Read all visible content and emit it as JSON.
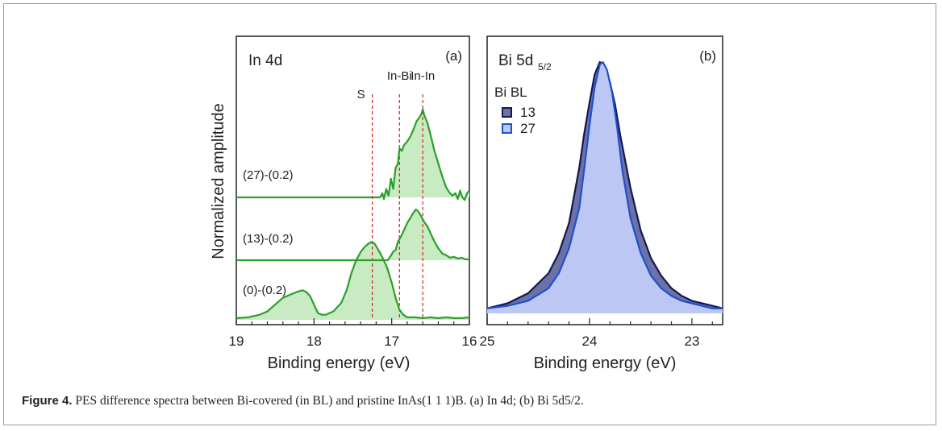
{
  "figure": {
    "ylabel": "Normalized amplitude",
    "caption": {
      "label": "Figure 4.",
      "text": "PES difference spectra between Bi-covered (in BL) and pristine InAs(1 1 1)B. (a)  In  4d; (b)  Bi  5d5/2."
    }
  },
  "chart_data": [
    {
      "type": "line",
      "panel_tag": "(a)",
      "title": "In 4d",
      "xlabel": "Binding energy (eV)",
      "xlim": [
        19,
        16
      ],
      "x_ticks": [
        "19",
        "18",
        "17",
        "16"
      ],
      "grid": false,
      "color": "#2aa02a",
      "fill": "#c8ebc3",
      "markers": [
        {
          "label": "S",
          "x": 17.25
        },
        {
          "label": "In-Bi",
          "x": 16.9
        },
        {
          "label": "In-In",
          "x": 16.6
        }
      ],
      "series": [
        {
          "name": "(27)-(0.2)",
          "offset": 2.0,
          "points": [
            [
              19.0,
              0
            ],
            [
              17.15,
              0
            ],
            [
              17.12,
              0.05
            ],
            [
              17.1,
              -0.02
            ],
            [
              17.07,
              0.1
            ],
            [
              17.04,
              0.02
            ],
            [
              17.01,
              0.22
            ],
            [
              16.98,
              0.1
            ],
            [
              16.95,
              0.35
            ],
            [
              16.92,
              0.4
            ],
            [
              16.9,
              0.58
            ],
            [
              16.87,
              0.55
            ],
            [
              16.84,
              0.62
            ],
            [
              16.8,
              0.66
            ],
            [
              16.76,
              0.72
            ],
            [
              16.72,
              0.8
            ],
            [
              16.68,
              0.9
            ],
            [
              16.64,
              0.95
            ],
            [
              16.62,
              0.98
            ],
            [
              16.6,
              1.04
            ],
            [
              16.58,
              0.97
            ],
            [
              16.54,
              0.88
            ],
            [
              16.5,
              0.74
            ],
            [
              16.45,
              0.55
            ],
            [
              16.4,
              0.4
            ],
            [
              16.35,
              0.25
            ],
            [
              16.3,
              0.12
            ],
            [
              16.26,
              0.06
            ],
            [
              16.22,
              0.02
            ],
            [
              16.18,
              0.05
            ],
            [
              16.15,
              -0.02
            ],
            [
              16.12,
              0.08
            ],
            [
              16.09,
              0.0
            ],
            [
              16.06,
              -0.03
            ],
            [
              16.03,
              0.05
            ],
            [
              16.0,
              0.08
            ]
          ]
        },
        {
          "name": "(13)-(0.2)",
          "offset": 1.0,
          "points": [
            [
              19.0,
              0
            ],
            [
              17.05,
              0
            ],
            [
              17.02,
              0.04
            ],
            [
              16.98,
              0.1
            ],
            [
              16.95,
              0.12
            ],
            [
              16.92,
              0.22
            ],
            [
              16.88,
              0.28
            ],
            [
              16.84,
              0.36
            ],
            [
              16.8,
              0.44
            ],
            [
              16.76,
              0.5
            ],
            [
              16.72,
              0.56
            ],
            [
              16.69,
              0.6
            ],
            [
              16.66,
              0.58
            ],
            [
              16.62,
              0.52
            ],
            [
              16.58,
              0.45
            ],
            [
              16.54,
              0.4
            ],
            [
              16.5,
              0.32
            ],
            [
              16.45,
              0.22
            ],
            [
              16.4,
              0.14
            ],
            [
              16.35,
              0.08
            ],
            [
              16.3,
              0.06
            ],
            [
              16.25,
              0.03
            ],
            [
              16.2,
              0.04
            ],
            [
              16.15,
              0.02
            ],
            [
              16.1,
              0.03
            ],
            [
              16.05,
              0.01
            ],
            [
              16.0,
              0.01
            ]
          ]
        },
        {
          "name": "(0)-(0.2)",
          "offset": 0.0,
          "points": [
            [
              19.0,
              0.02
            ],
            [
              18.85,
              0.03
            ],
            [
              18.7,
              0.06
            ],
            [
              18.6,
              0.1
            ],
            [
              18.5,
              0.18
            ],
            [
              18.4,
              0.26
            ],
            [
              18.3,
              0.3
            ],
            [
              18.22,
              0.33
            ],
            [
              18.15,
              0.35
            ],
            [
              18.1,
              0.33
            ],
            [
              18.05,
              0.28
            ],
            [
              18.0,
              0.18
            ],
            [
              17.95,
              0.08
            ],
            [
              17.9,
              0.06
            ],
            [
              17.85,
              0.06
            ],
            [
              17.75,
              0.1
            ],
            [
              17.65,
              0.2
            ],
            [
              17.58,
              0.35
            ],
            [
              17.52,
              0.55
            ],
            [
              17.46,
              0.7
            ],
            [
              17.4,
              0.8
            ],
            [
              17.35,
              0.86
            ],
            [
              17.3,
              0.9
            ],
            [
              17.26,
              0.92
            ],
            [
              17.22,
              0.9
            ],
            [
              17.18,
              0.84
            ],
            [
              17.12,
              0.74
            ],
            [
              17.06,
              0.62
            ],
            [
              17.0,
              0.44
            ],
            [
              16.95,
              0.26
            ],
            [
              16.9,
              0.12
            ],
            [
              16.85,
              0.06
            ],
            [
              16.8,
              0.03
            ],
            [
              16.7,
              0.03
            ],
            [
              16.6,
              0.02
            ],
            [
              16.5,
              0.03
            ],
            [
              16.4,
              0.02
            ],
            [
              16.3,
              0.03
            ],
            [
              16.2,
              0.02
            ],
            [
              16.1,
              0.02
            ],
            [
              16.0,
              0.03
            ]
          ]
        }
      ]
    },
    {
      "type": "area",
      "panel_tag": "(b)",
      "title": "Bi 5d5/2",
      "xlabel": "Binding energy (eV)",
      "xlim": [
        25,
        22.7
      ],
      "x_ticks": [
        "25",
        "24",
        "23"
      ],
      "grid": false,
      "legend_title": "Bi BL",
      "legend_position": "upper-left",
      "series": [
        {
          "name": "13",
          "line": "#141850",
          "fill": "#6d72a6",
          "points": [
            [
              25.0,
              0.02
            ],
            [
              24.8,
              0.04
            ],
            [
              24.6,
              0.08
            ],
            [
              24.4,
              0.16
            ],
            [
              24.3,
              0.24
            ],
            [
              24.2,
              0.36
            ],
            [
              24.1,
              0.58
            ],
            [
              24.05,
              0.72
            ],
            [
              24.0,
              0.84
            ],
            [
              23.95,
              0.95
            ],
            [
              23.9,
              1.0
            ],
            [
              23.85,
              0.98
            ],
            [
              23.8,
              0.92
            ],
            [
              23.75,
              0.83
            ],
            [
              23.7,
              0.71
            ],
            [
              23.6,
              0.5
            ],
            [
              23.5,
              0.33
            ],
            [
              23.4,
              0.22
            ],
            [
              23.3,
              0.15
            ],
            [
              23.2,
              0.1
            ],
            [
              23.1,
              0.07
            ],
            [
              23.0,
              0.05
            ],
            [
              22.8,
              0.03
            ],
            [
              22.7,
              0.02
            ]
          ]
        },
        {
          "name": "27",
          "line": "#1f4fd0",
          "fill": "#bcc8f3",
          "points": [
            [
              25.0,
              0.02
            ],
            [
              24.8,
              0.03
            ],
            [
              24.6,
              0.05
            ],
            [
              24.4,
              0.1
            ],
            [
              24.3,
              0.16
            ],
            [
              24.2,
              0.26
            ],
            [
              24.1,
              0.42
            ],
            [
              24.05,
              0.58
            ],
            [
              24.0,
              0.75
            ],
            [
              23.95,
              0.9
            ],
            [
              23.9,
              0.99
            ],
            [
              23.87,
              1.0
            ],
            [
              23.83,
              0.97
            ],
            [
              23.78,
              0.88
            ],
            [
              23.73,
              0.74
            ],
            [
              23.68,
              0.57
            ],
            [
              23.6,
              0.38
            ],
            [
              23.5,
              0.24
            ],
            [
              23.4,
              0.15
            ],
            [
              23.3,
              0.1
            ],
            [
              23.2,
              0.07
            ],
            [
              23.1,
              0.05
            ],
            [
              23.0,
              0.04
            ],
            [
              22.8,
              0.02
            ],
            [
              22.7,
              0.02
            ]
          ]
        }
      ]
    }
  ]
}
